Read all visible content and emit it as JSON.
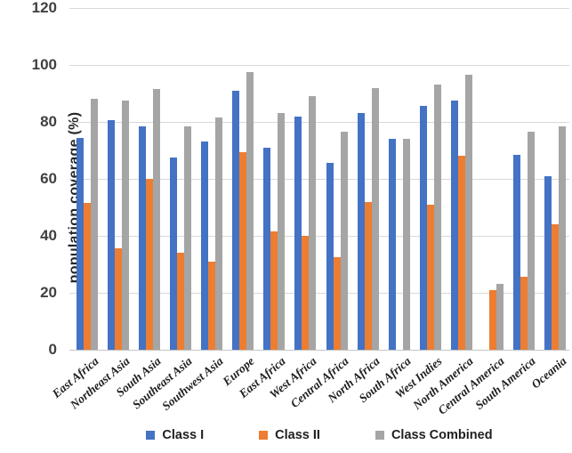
{
  "chart_data": {
    "type": "bar",
    "ylabel": "population coverage (%)",
    "ylim": [
      0,
      120
    ],
    "yticks": [
      0,
      20,
      40,
      60,
      80,
      100,
      120
    ],
    "grid": true,
    "legend_position": "bottom",
    "categories": [
      "East Africa",
      "Northeast Asia",
      "South Asia",
      "Southeast Asia",
      "Southwest Asia",
      "Europe",
      "East Africa",
      "West Africa",
      "Central Africa",
      "North Africa",
      "South Africa",
      "West Indies",
      "North America",
      "Central America",
      "South America",
      "Oceania"
    ],
    "series": [
      {
        "name": "Class I",
        "color": "#4472C4",
        "values": [
          74.5,
          80.5,
          78.5,
          67.5,
          73,
          91,
          71,
          82,
          65.5,
          83,
          74,
          85.5,
          87.5,
          0,
          68.5,
          61
        ]
      },
      {
        "name": "Class II",
        "color": "#ED7D31",
        "values": [
          51.5,
          35.5,
          60,
          34,
          31,
          69.5,
          41.5,
          40,
          32.5,
          52,
          0,
          51,
          68,
          21,
          25.5,
          44
        ]
      },
      {
        "name": "Class Combined",
        "color": "#A5A5A5",
        "values": [
          88,
          87.5,
          91.5,
          78.5,
          81.5,
          97.5,
          83,
          89,
          76.5,
          92,
          74,
          93,
          96.5,
          23,
          76.5,
          78.5
        ]
      }
    ]
  }
}
